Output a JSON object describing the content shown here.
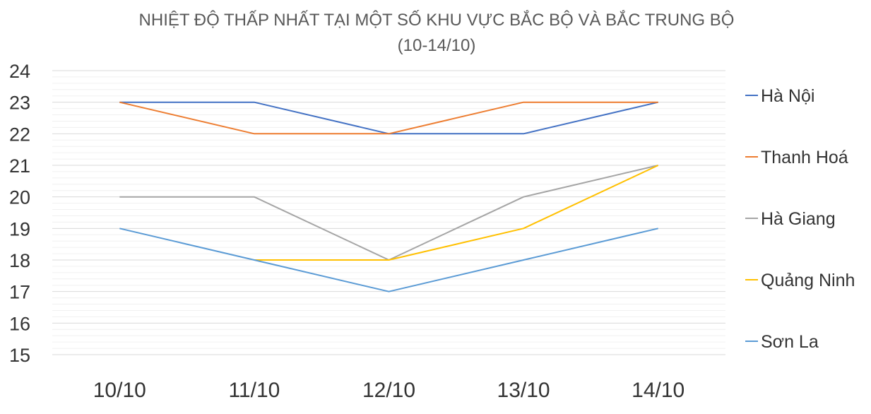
{
  "chart_data": {
    "type": "line",
    "title": "NHIỆT ĐỘ THẤP NHẤT TẠI MỘT SỐ KHU VỰC BẮC BỘ VÀ BẮC TRUNG BỘ",
    "subtitle": "(10-14/10)",
    "xlabel": "",
    "ylabel": "",
    "categories": [
      "10/10",
      "11/10",
      "12/10",
      "13/10",
      "14/10"
    ],
    "ylim": [
      15,
      24
    ],
    "yticks": [
      15,
      16,
      17,
      18,
      19,
      20,
      21,
      22,
      23,
      24
    ],
    "grid": true,
    "legend": "right",
    "series": [
      {
        "name": "Hà Nội",
        "color": "#4472C4",
        "values": [
          23,
          23,
          22,
          22,
          23
        ]
      },
      {
        "name": "Thanh Hoá",
        "color": "#ED7D31",
        "values": [
          23,
          22,
          22,
          23,
          23
        ]
      },
      {
        "name": "Hà Giang",
        "color": "#A5A5A5",
        "values": [
          20,
          20,
          18,
          20,
          21
        ]
      },
      {
        "name": "Quảng Ninh",
        "color": "#FFC000",
        "values": [
          null,
          18,
          18,
          19,
          21
        ]
      },
      {
        "name": "Sơn La",
        "color": "#5B9BD5",
        "values": [
          19,
          18,
          17,
          18,
          19
        ]
      }
    ]
  }
}
